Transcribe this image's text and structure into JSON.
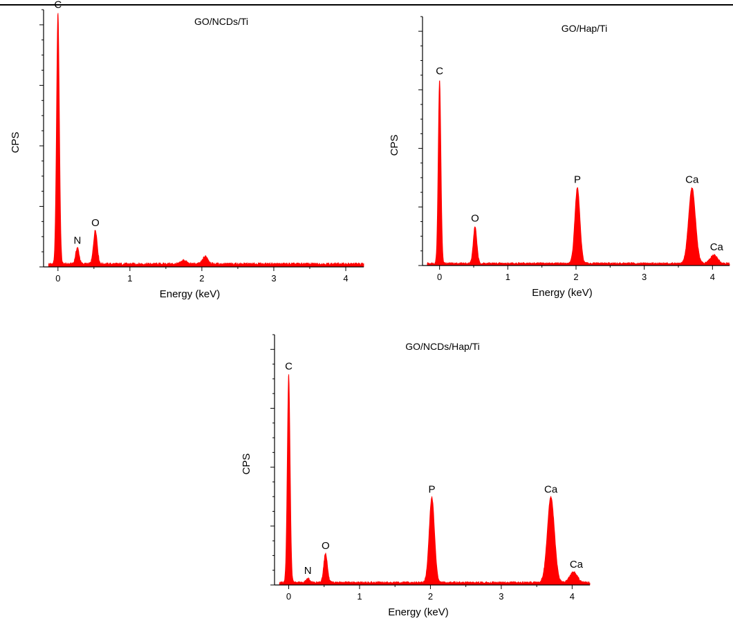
{
  "chart_data": [
    {
      "type": "area",
      "title": "GO/NCDs/Ti",
      "xlabel": "Energy (keV)",
      "ylabel": "CPS",
      "xlim": [
        -0.2,
        4.25
      ],
      "ylim": [
        0,
        1.02
      ],
      "x_ticks": [
        0,
        1,
        2,
        3,
        4
      ],
      "y_tick_count": 17,
      "baseline": 0.012,
      "series": [
        {
          "color": "#ff0000",
          "peaks": [
            {
              "label": "C",
              "energy": 0.0,
              "height": 1.0
            },
            {
              "label": "N",
              "energy": 0.27,
              "height": 0.065
            },
            {
              "label": "O",
              "energy": 0.52,
              "height": 0.135
            },
            {
              "label": "",
              "energy": 1.75,
              "height": 0.015
            },
            {
              "label": "",
              "energy": 2.05,
              "height": 0.03
            }
          ]
        }
      ]
    },
    {
      "type": "area",
      "title": "GO/Hap/Ti",
      "xlabel": "Energy (keV)",
      "ylabel": "CPS",
      "xlim": [
        -0.25,
        4.25
      ],
      "ylim": [
        0,
        1.35
      ],
      "x_ticks": [
        0,
        1,
        2,
        3,
        4
      ],
      "y_tick_count": 17,
      "baseline": 0.012,
      "series": [
        {
          "color": "#ff0000",
          "peaks": [
            {
              "label": "C",
              "energy": 0.0,
              "height": 1.0
            },
            {
              "label": "O",
              "energy": 0.52,
              "height": 0.2
            },
            {
              "label": "P",
              "energy": 2.02,
              "height": 0.41
            },
            {
              "label": "Ca",
              "energy": 3.7,
              "height": 0.41
            },
            {
              "label": "Ca",
              "energy": 4.02,
              "height": 0.045
            }
          ]
        }
      ]
    },
    {
      "type": "area",
      "title": "GO/NCDs/Hap/Ti",
      "xlabel": "Energy (keV)",
      "ylabel": "CPS",
      "xlim": [
        -0.2,
        4.25
      ],
      "ylim": [
        0,
        1.2
      ],
      "x_ticks": [
        0,
        1,
        2,
        3,
        4
      ],
      "y_tick_count": 17,
      "baseline": 0.012,
      "series": [
        {
          "color": "#ff0000",
          "peaks": [
            {
              "label": "C",
              "energy": 0.0,
              "height": 1.0
            },
            {
              "label": "N",
              "energy": 0.27,
              "height": 0.02
            },
            {
              "label": "O",
              "energy": 0.52,
              "height": 0.14
            },
            {
              "label": "P",
              "energy": 2.02,
              "height": 0.41
            },
            {
              "label": "Ca",
              "energy": 3.7,
              "height": 0.41
            },
            {
              "label": "Ca",
              "energy": 4.02,
              "height": 0.05
            }
          ]
        }
      ]
    }
  ]
}
